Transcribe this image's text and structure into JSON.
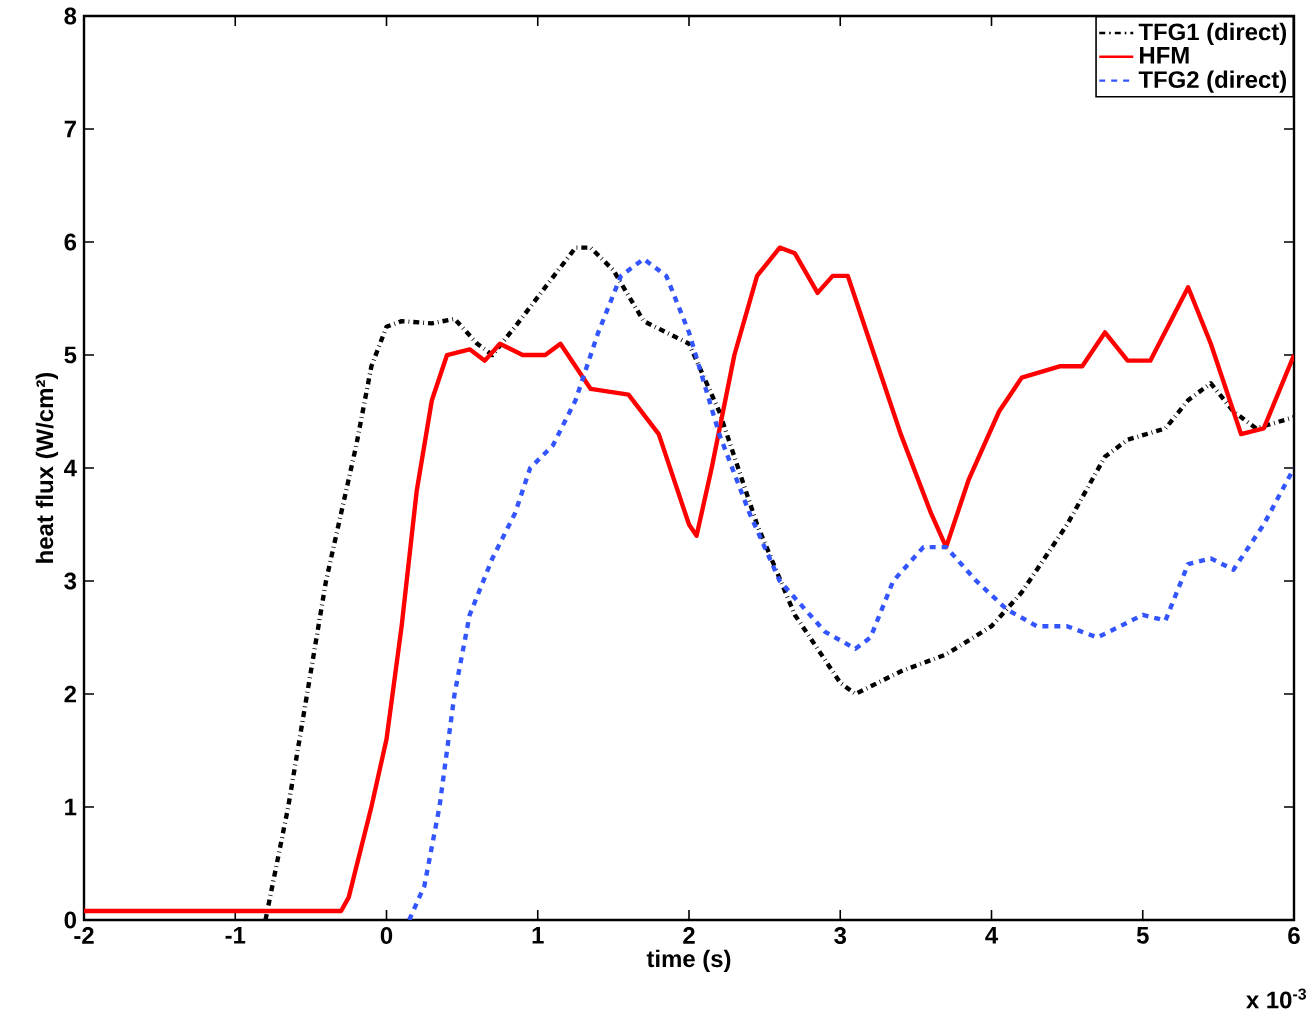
{
  "chart_data": {
    "type": "line",
    "xlabel": "time (s)",
    "ylabel": "heat flux (W/cm²)",
    "annotations": [
      "x 10$^{-3}$"
    ],
    "xlim": [
      -2,
      6
    ],
    "xticks": [
      -2,
      -1,
      0,
      1,
      2,
      3,
      4,
      5,
      6
    ],
    "ylim": [
      0,
      8
    ],
    "yticks": [
      0,
      1,
      2,
      3,
      4,
      5,
      6,
      7,
      8
    ],
    "grid": false,
    "legend": "top right",
    "marker": "none",
    "series": [
      {
        "name": "TFG1 (direct)",
        "color": "#000000",
        "line_style": "dashdot",
        "x": [
          -0.8,
          -0.65,
          -0.5,
          -0.4,
          -0.3,
          -0.2,
          -0.1,
          0,
          0.1,
          0.3,
          0.45,
          0.6,
          0.7,
          0.85,
          1.05,
          1.25,
          1.35,
          1.5,
          1.7,
          1.85,
          2.0,
          2.2,
          2.45,
          2.7,
          3.0,
          3.1,
          3.4,
          3.7,
          4.0,
          4.2,
          4.5,
          4.75,
          4.9,
          5.15,
          5.3,
          5.45,
          5.6,
          5.75,
          6.0
        ],
        "values": [
          0,
          1,
          2.2,
          3.0,
          3.6,
          4.2,
          4.9,
          5.25,
          5.3,
          5.28,
          5.32,
          5.1,
          5.0,
          5.25,
          5.6,
          5.95,
          5.95,
          5.75,
          5.3,
          5.2,
          5.1,
          4.5,
          3.5,
          2.7,
          2.1,
          2.0,
          2.2,
          2.35,
          2.6,
          2.9,
          3.5,
          4.1,
          4.25,
          4.35,
          4.6,
          4.75,
          4.5,
          4.35,
          4.45
        ]
      },
      {
        "name": "HFM",
        "color": "#ff0000",
        "line_style": "solid",
        "x": [
          -2,
          -1.5,
          -1,
          -0.5,
          -0.3,
          -0.25,
          -0.1,
          0,
          0.1,
          0.2,
          0.3,
          0.4,
          0.55,
          0.65,
          0.75,
          0.9,
          1.05,
          1.15,
          1.25,
          1.35,
          1.6,
          1.8,
          1.9,
          2.0,
          2.05,
          2.15,
          2.3,
          2.45,
          2.6,
          2.7,
          2.85,
          2.95,
          3.05,
          3.2,
          3.4,
          3.6,
          3.7,
          3.85,
          4.05,
          4.2,
          4.45,
          4.6,
          4.75,
          4.9,
          5.05,
          5.3,
          5.45,
          5.65,
          5.8,
          6.0
        ],
        "values": [
          0.08,
          0.08,
          0.08,
          0.08,
          0.08,
          0.2,
          1.0,
          1.6,
          2.6,
          3.8,
          4.6,
          5.0,
          5.05,
          4.95,
          5.1,
          5.0,
          5.0,
          5.1,
          4.9,
          4.7,
          4.65,
          4.3,
          3.9,
          3.5,
          3.4,
          4.0,
          5.0,
          5.7,
          5.95,
          5.9,
          5.55,
          5.7,
          5.7,
          5.1,
          4.3,
          3.6,
          3.3,
          3.9,
          4.5,
          4.8,
          4.9,
          4.9,
          5.2,
          4.95,
          4.95,
          5.6,
          5.1,
          4.3,
          4.35,
          5.0
        ]
      },
      {
        "name": "TFG2 (direct)",
        "color": "#3355ff",
        "line_style": "dashed",
        "x": [
          0.15,
          0.25,
          0.35,
          0.45,
          0.55,
          0.7,
          0.85,
          0.95,
          1.1,
          1.25,
          1.4,
          1.55,
          1.7,
          1.85,
          2.0,
          2.2,
          2.4,
          2.6,
          2.9,
          3.1,
          3.2,
          3.35,
          3.55,
          3.7,
          3.9,
          4.1,
          4.3,
          4.5,
          4.7,
          4.85,
          5.0,
          5.15,
          5.3,
          5.45,
          5.6,
          5.8,
          6.0
        ],
        "values": [
          0,
          0.3,
          1.0,
          2.0,
          2.7,
          3.2,
          3.6,
          4.0,
          4.2,
          4.6,
          5.2,
          5.7,
          5.85,
          5.7,
          5.2,
          4.3,
          3.6,
          3.0,
          2.55,
          2.4,
          2.5,
          3.0,
          3.3,
          3.3,
          3.0,
          2.75,
          2.6,
          2.6,
          2.5,
          2.6,
          2.7,
          2.65,
          3.15,
          3.2,
          3.1,
          3.5,
          4.0
        ]
      }
    ]
  }
}
